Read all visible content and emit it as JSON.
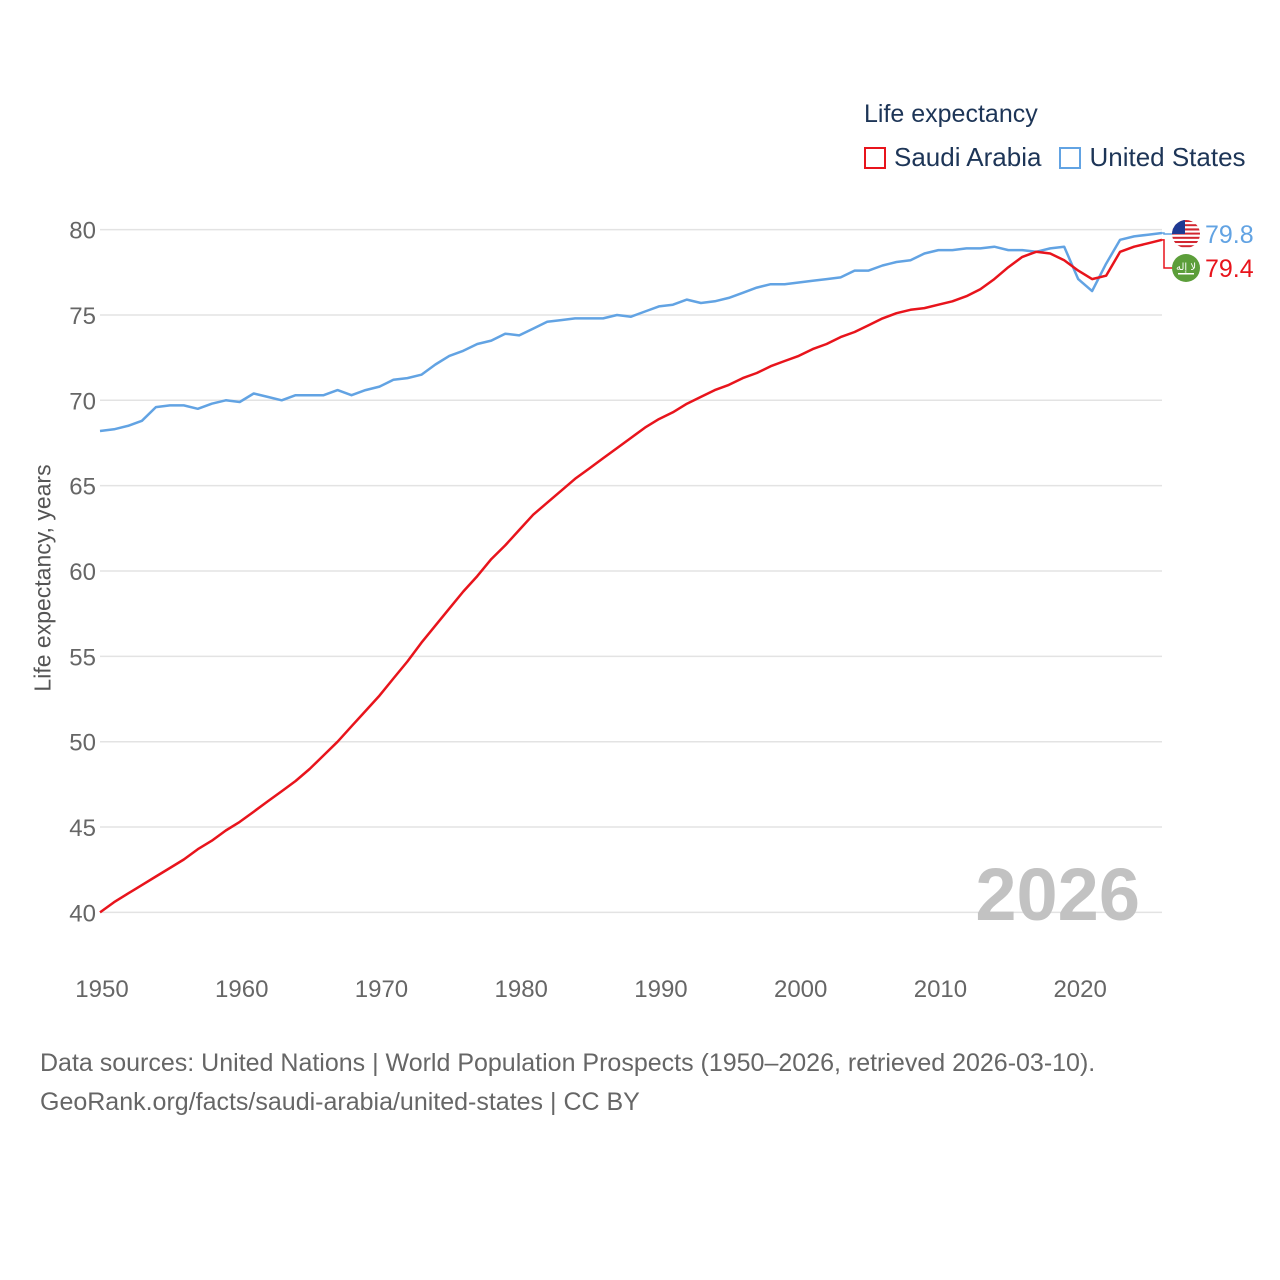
{
  "legend": {
    "title": "Life expectancy",
    "items": [
      {
        "label": "Saudi Arabia",
        "color": "#e8141c"
      },
      {
        "label": "United States",
        "color": "#62a3e3"
      }
    ]
  },
  "footer": {
    "line1": "Data sources: United Nations | World Population Prospects (1950–2026, retrieved 2026-03-10).",
    "line2": "GeoRank.org/facts/saudi-arabia/united-states | CC BY"
  },
  "chart_data": {
    "type": "line",
    "title": "Life expectancy",
    "xlabel": "",
    "ylabel": "Life expectancy, years",
    "year_label": "2026",
    "xlim": [
      1950,
      2026
    ],
    "ylim": [
      38.5,
      81.5
    ],
    "x_ticks": [
      1950,
      1960,
      1970,
      1980,
      1990,
      2000,
      2010,
      2020
    ],
    "y_ticks": [
      40,
      45,
      50,
      55,
      60,
      65,
      70,
      75,
      80
    ],
    "grid": true,
    "legend_position": "top-right",
    "x": [
      1950,
      1951,
      1952,
      1953,
      1954,
      1955,
      1956,
      1957,
      1958,
      1959,
      1960,
      1961,
      1962,
      1963,
      1964,
      1965,
      1966,
      1967,
      1968,
      1969,
      1970,
      1971,
      1972,
      1973,
      1974,
      1975,
      1976,
      1977,
      1978,
      1979,
      1980,
      1981,
      1982,
      1983,
      1984,
      1985,
      1986,
      1987,
      1988,
      1989,
      1990,
      1991,
      1992,
      1993,
      1994,
      1995,
      1996,
      1997,
      1998,
      1999,
      2000,
      2001,
      2002,
      2003,
      2004,
      2005,
      2006,
      2007,
      2008,
      2009,
      2010,
      2011,
      2012,
      2013,
      2014,
      2015,
      2016,
      2017,
      2018,
      2019,
      2020,
      2021,
      2022,
      2023,
      2024,
      2025,
      2026
    ],
    "series": [
      {
        "name": "Saudi Arabia",
        "color": "#e8141c",
        "end_label": "79.4",
        "flag_text": "لا إله",
        "values": [
          40.0,
          40.6,
          41.1,
          41.6,
          42.1,
          42.6,
          43.1,
          43.7,
          44.2,
          44.8,
          45.3,
          45.9,
          46.5,
          47.1,
          47.7,
          48.4,
          49.2,
          50.0,
          50.9,
          51.8,
          52.7,
          53.7,
          54.7,
          55.8,
          56.8,
          57.8,
          58.8,
          59.7,
          60.7,
          61.5,
          62.4,
          63.3,
          64.0,
          64.7,
          65.4,
          66.0,
          66.6,
          67.2,
          67.8,
          68.4,
          68.9,
          69.3,
          69.8,
          70.2,
          70.6,
          70.9,
          71.3,
          71.6,
          72.0,
          72.3,
          72.6,
          73.0,
          73.3,
          73.7,
          74.0,
          74.4,
          74.8,
          75.1,
          75.3,
          75.4,
          75.6,
          75.8,
          76.1,
          76.5,
          77.1,
          77.8,
          78.4,
          78.7,
          78.6,
          78.2,
          77.6,
          77.1,
          77.3,
          78.7,
          79.0,
          79.2,
          79.4
        ]
      },
      {
        "name": "United States",
        "color": "#62a3e3",
        "end_label": "79.8",
        "values": [
          68.2,
          68.3,
          68.5,
          68.8,
          69.6,
          69.7,
          69.7,
          69.5,
          69.8,
          70.0,
          69.9,
          70.4,
          70.2,
          70.0,
          70.3,
          70.3,
          70.3,
          70.6,
          70.3,
          70.6,
          70.8,
          71.2,
          71.3,
          71.5,
          72.1,
          72.6,
          72.9,
          73.3,
          73.5,
          73.9,
          73.8,
          74.2,
          74.6,
          74.7,
          74.8,
          74.8,
          74.8,
          75.0,
          74.9,
          75.2,
          75.5,
          75.6,
          75.9,
          75.7,
          75.8,
          76.0,
          76.3,
          76.6,
          76.8,
          76.8,
          76.9,
          77.0,
          77.1,
          77.2,
          77.6,
          77.6,
          77.9,
          78.1,
          78.2,
          78.6,
          78.8,
          78.8,
          78.9,
          78.9,
          79.0,
          78.8,
          78.8,
          78.7,
          78.9,
          79.0,
          77.1,
          76.4,
          78.0,
          79.4,
          79.6,
          79.7,
          79.8
        ]
      }
    ]
  }
}
